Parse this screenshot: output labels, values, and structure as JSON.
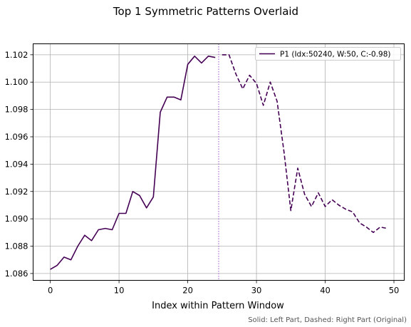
{
  "chart_data": {
    "type": "line",
    "title": "Top 1 Symmetric Patterns Overlaid",
    "xlabel": "Index within Pattern Window",
    "ylabel": "",
    "xlim": [
      -2.5,
      51.5
    ],
    "ylim": [
      1.0855,
      1.1028
    ],
    "xticks": [
      0,
      10,
      20,
      30,
      40,
      50
    ],
    "xtick_labels": [
      "0",
      "10",
      "20",
      "30",
      "40",
      "50"
    ],
    "yticks": [
      1.086,
      1.088,
      1.09,
      1.092,
      1.094,
      1.096,
      1.098,
      1.1,
      1.102
    ],
    "ytick_labels": [
      "1.086",
      "1.088",
      "1.090",
      "1.092",
      "1.094",
      "1.096",
      "1.098",
      "1.100",
      "1.102"
    ],
    "grid": true,
    "legend_position": "top-right",
    "divider_x": 24.5,
    "color": "#440154",
    "divider_color": "#a050c8",
    "caption": "Solid: Left Part, Dashed: Right Part (Original)",
    "series": [
      {
        "name": "P1 (Idx:50240, W:50, C:-0.98)",
        "left": {
          "x": [
            0,
            1,
            2,
            3,
            4,
            5,
            6,
            7,
            8,
            9,
            10,
            11,
            12,
            13,
            14,
            15,
            16,
            17,
            18,
            19,
            20,
            21,
            22,
            23,
            24
          ],
          "y": [
            1.0863,
            1.0866,
            1.0872,
            1.087,
            1.088,
            1.0888,
            1.0884,
            1.0892,
            1.0893,
            1.0892,
            1.0904,
            1.0904,
            1.092,
            1.0917,
            1.0908,
            1.0916,
            1.0978,
            1.0989,
            1.0989,
            1.0987,
            1.1013,
            1.1019,
            1.1014,
            1.1019,
            1.1018
          ]
        },
        "right": {
          "x": [
            25,
            26,
            27,
            28,
            29,
            30,
            31,
            32,
            33,
            34,
            35,
            36,
            37,
            38,
            39,
            40,
            41,
            42,
            43,
            44,
            45,
            46,
            47,
            48,
            49
          ],
          "y": [
            1.102,
            1.102,
            1.1006,
            1.0995,
            1.1005,
            1.0999,
            1.0983,
            1.1,
            1.0986,
            1.0949,
            1.0906,
            1.0937,
            1.0918,
            1.0909,
            1.0919,
            1.0909,
            1.0914,
            1.091,
            1.0907,
            1.0905,
            1.0897,
            1.0894,
            1.089,
            1.0894,
            1.0893
          ]
        }
      }
    ]
  }
}
